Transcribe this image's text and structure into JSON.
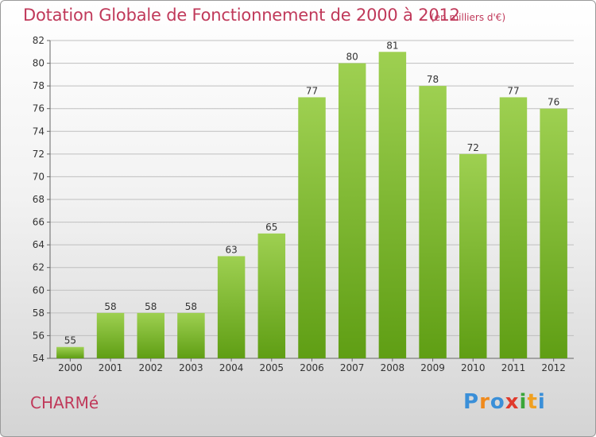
{
  "title": "Dotation Globale de Fonctionnement de 2000 à 2012",
  "subtitle": "(en milliers d'€)",
  "commune": "CHARMé",
  "logo": {
    "text": "Proxiti",
    "letters": [
      "P",
      "r",
      "o",
      "x",
      "i",
      "t",
      "i"
    ],
    "colors": [
      "#3a8fd8",
      "#f08a1c",
      "#3a8fd8",
      "#e03a2c",
      "#3aa63a",
      "#f0a020",
      "#3a8fd8"
    ]
  },
  "colors": {
    "title": "#c0395a",
    "bar_top": "#9ed051",
    "bar_bottom": "#5f9e14",
    "grid": "#bfbfbf"
  },
  "chart_data": {
    "type": "bar",
    "categories": [
      "2000",
      "2001",
      "2002",
      "2003",
      "2004",
      "2005",
      "2006",
      "2007",
      "2008",
      "2009",
      "2010",
      "2011",
      "2012"
    ],
    "values": [
      55,
      58,
      58,
      58,
      63,
      65,
      77,
      80,
      81,
      78,
      72,
      77,
      76
    ],
    "ylim": [
      54,
      82
    ],
    "yticks": [
      54,
      56,
      58,
      60,
      62,
      64,
      66,
      68,
      70,
      72,
      74,
      76,
      78,
      80,
      82
    ],
    "grid": true,
    "data_labels": true
  }
}
